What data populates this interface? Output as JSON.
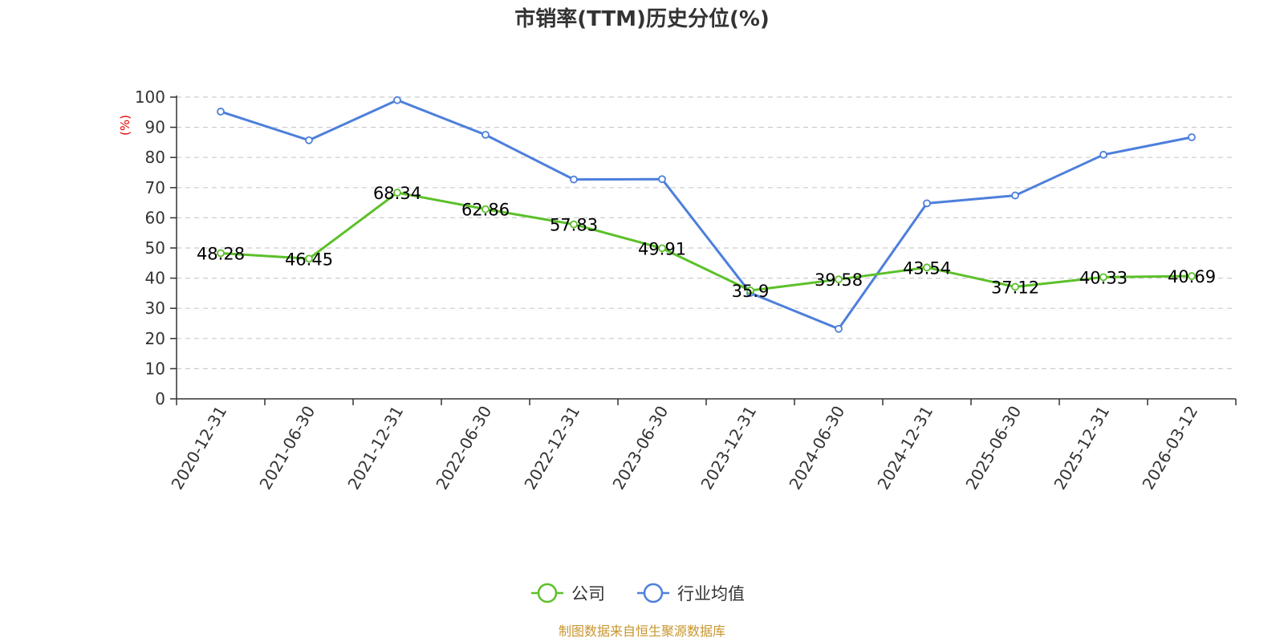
{
  "chart_data": {
    "type": "line",
    "title": "市销率(TTM)历史分位(%)",
    "ylabel": "(%)",
    "ylim": [
      0,
      100
    ],
    "yticks": [
      0,
      10,
      20,
      30,
      40,
      50,
      60,
      70,
      80,
      90,
      100
    ],
    "grid": true,
    "legend_position": "bottom-center",
    "categories": [
      "2020-12-31",
      "2021-06-30",
      "2021-12-31",
      "2022-06-30",
      "2022-12-31",
      "2023-06-30",
      "2023-12-31",
      "2024-06-30",
      "2024-12-31",
      "2025-06-30",
      "2025-12-31",
      "2026-03-12"
    ],
    "series": [
      {
        "name": "公司",
        "color": "#5cc02a",
        "show_labels": true,
        "values": [
          48.28,
          46.45,
          68.34,
          62.86,
          57.83,
          49.91,
          35.9,
          39.58,
          43.54,
          37.12,
          40.33,
          40.69
        ]
      },
      {
        "name": "行业均值",
        "color": "#4d7fdc",
        "show_labels": false,
        "values": [
          95.2,
          85.7,
          99.0,
          87.5,
          72.7,
          72.8,
          35.1,
          23.2,
          64.8,
          67.4,
          80.9,
          86.7
        ]
      }
    ]
  },
  "source_text": "制图数据来自恒生聚源数据库"
}
